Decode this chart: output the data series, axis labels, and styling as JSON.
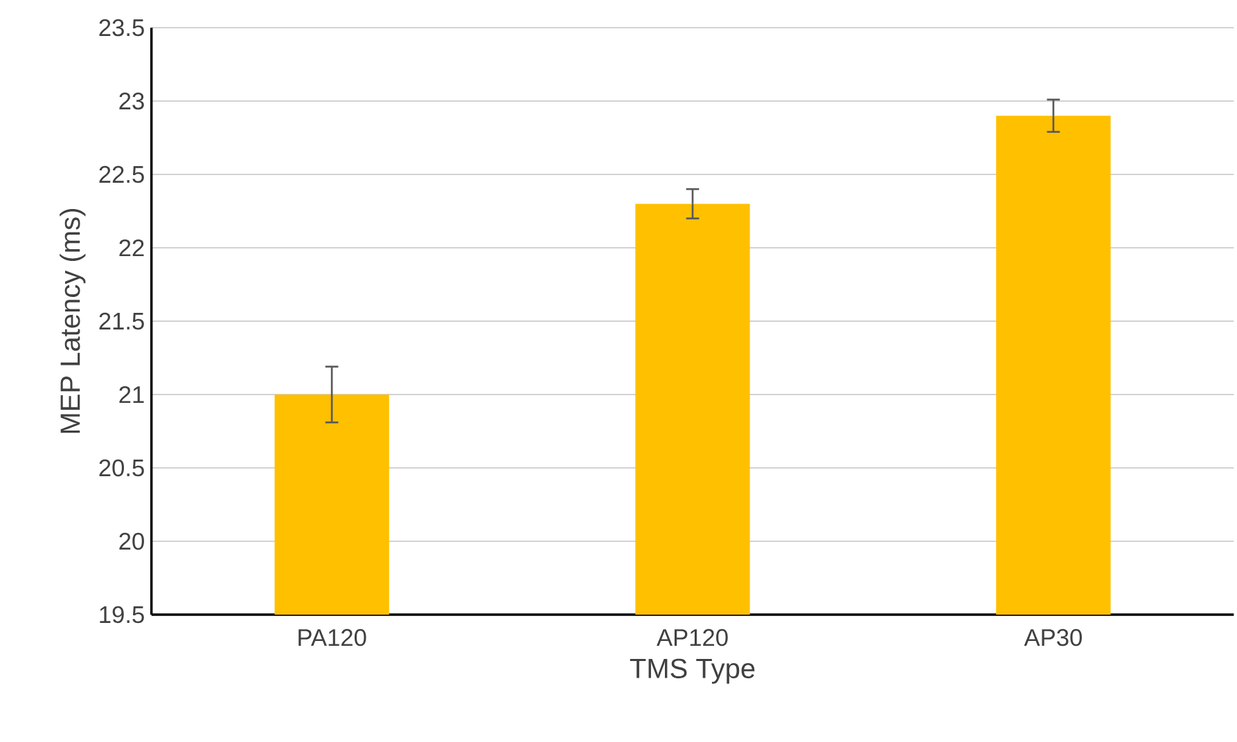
{
  "chart_data": {
    "type": "bar",
    "xlabel": "TMS Type",
    "ylabel": "MEP Latency (ms)",
    "categories": [
      "PA120",
      "AP120",
      "AP30"
    ],
    "values": [
      21.0,
      22.3,
      22.9
    ],
    "errors": [
      0.19,
      0.1,
      0.11
    ],
    "color": "#ffc000",
    "ylim": [
      19.5,
      23.5
    ],
    "yticks": [
      19.5,
      20,
      20.5,
      21,
      21.5,
      22,
      22.5,
      23,
      23.5
    ],
    "grid": "y"
  }
}
